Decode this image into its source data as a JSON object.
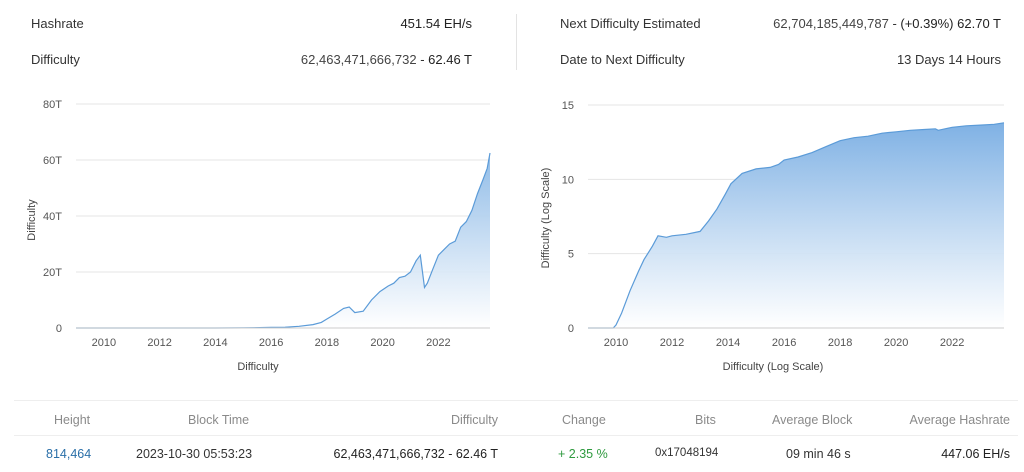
{
  "stats": {
    "hashrate_label": "Hashrate",
    "hashrate_value": "451.54 EH/s",
    "difficulty_label": "Difficulty",
    "difficulty_value": "62,463,471,666,732",
    "difficulty_sep": " - ",
    "difficulty_short": "62.46 T",
    "next_label": "Next Difficulty Estimated",
    "next_value": "62,704,185,449,787",
    "next_sep": " - ",
    "next_change": "(+0.39%)",
    "next_short": "62.70 T",
    "date_label": "Date to Next Difficulty",
    "date_value": "13 Days 14 Hours"
  },
  "chart_data": [
    {
      "type": "area",
      "title": "",
      "xlabel": "Difficulty",
      "ylabel": "Difficulty",
      "y_ticks": [
        "0",
        "20T",
        "40T",
        "60T",
        "80T"
      ],
      "x_ticks": [
        "2010",
        "2012",
        "2014",
        "2016",
        "2018",
        "2020",
        "2022"
      ],
      "ylim": [
        0,
        80
      ],
      "xlim": [
        2009.0,
        2023.85
      ],
      "grid": true,
      "x": [
        2009.0,
        2010.0,
        2011.0,
        2012.0,
        2013.0,
        2014.0,
        2015.0,
        2016.0,
        2016.5,
        2017.0,
        2017.5,
        2017.8,
        2018.0,
        2018.3,
        2018.6,
        2018.8,
        2018.9,
        2019.0,
        2019.3,
        2019.6,
        2019.9,
        2020.2,
        2020.4,
        2020.6,
        2020.8,
        2021.0,
        2021.2,
        2021.35,
        2021.5,
        2021.6,
        2021.8,
        2022.0,
        2022.2,
        2022.4,
        2022.6,
        2022.8,
        2023.0,
        2023.2,
        2023.4,
        2023.6,
        2023.75,
        2023.85
      ],
      "values": [
        0,
        0,
        0,
        0,
        0,
        0.01,
        0.05,
        0.2,
        0.3,
        0.6,
        1.2,
        2.0,
        3.2,
        5.0,
        7.0,
        7.5,
        6.5,
        5.5,
        6.0,
        10.0,
        13.0,
        15.0,
        16.0,
        18.0,
        18.5,
        20.0,
        24.0,
        26.0,
        14.5,
        16.0,
        21.0,
        26.0,
        28.0,
        30.0,
        31.0,
        36.0,
        38.0,
        42.0,
        48.0,
        53.0,
        57.0,
        62.5
      ]
    },
    {
      "type": "area",
      "title": "",
      "xlabel": "Difficulty (Log Scale)",
      "ylabel": "Difficulty (Log Scale)",
      "y_ticks": [
        "0",
        "5",
        "10",
        "15"
      ],
      "x_ticks": [
        "2010",
        "2012",
        "2014",
        "2016",
        "2018",
        "2020",
        "2022"
      ],
      "ylim": [
        0,
        15
      ],
      "xlim": [
        2009.0,
        2023.85
      ],
      "grid": true,
      "x": [
        2009.0,
        2009.9,
        2010.0,
        2010.2,
        2010.5,
        2010.8,
        2011.0,
        2011.3,
        2011.5,
        2011.8,
        2012.0,
        2012.5,
        2013.0,
        2013.3,
        2013.6,
        2013.9,
        2014.1,
        2014.5,
        2015.0,
        2015.5,
        2015.8,
        2016.0,
        2016.5,
        2017.0,
        2017.5,
        2018.0,
        2018.5,
        2019.0,
        2019.5,
        2020.0,
        2020.5,
        2021.0,
        2021.4,
        2021.5,
        2022.0,
        2022.5,
        2023.0,
        2023.5,
        2023.85
      ],
      "values": [
        0,
        0,
        0.2,
        1.0,
        2.5,
        3.8,
        4.6,
        5.5,
        6.2,
        6.1,
        6.2,
        6.3,
        6.5,
        7.2,
        8.0,
        9.0,
        9.7,
        10.4,
        10.7,
        10.8,
        11.0,
        11.3,
        11.5,
        11.8,
        12.2,
        12.6,
        12.8,
        12.9,
        13.1,
        13.2,
        13.3,
        13.35,
        13.4,
        13.3,
        13.5,
        13.6,
        13.65,
        13.7,
        13.8
      ]
    }
  ],
  "table": {
    "headers": [
      "Height",
      "Block Time",
      "Difficulty",
      "Change",
      "Bits",
      "Average Block",
      "Average Hashrate"
    ],
    "row": {
      "height": "814,464",
      "block_time": "2023-10-30 05:53:23",
      "difficulty": "62,463,471,666,732 - 62.46 T",
      "change": "+ 2.35 %",
      "bits": "0x17048194",
      "average_block": "09 min 46 s",
      "average_hashrate": "447.06 EH/s"
    }
  },
  "colors": {
    "area_top": "#8ab8e6",
    "area_bottom": "#ffffff",
    "line": "#5b9bd8",
    "grid": "#e4e4e4",
    "link": "#2a6fa8",
    "positive": "#2e9a3e"
  }
}
